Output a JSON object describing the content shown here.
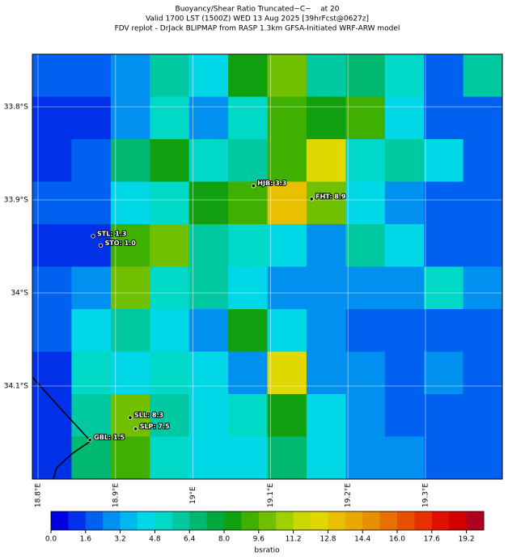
{
  "chart_data": {
    "type": "heatmap",
    "title_lines": [
      "Buoyancy/Shear Ratio Truncated~C~    at 20",
      "Valid 1700 LST (1500Z) WED 13 Aug 2025 [39hrFcst@0627z]",
      "FDV replot - DrJack BLIPMAP from RASP 1.3km GFSA-Initiated WRF-ARW model"
    ],
    "xlim": [
      18.7927,
      19.3992
    ],
    "ylim": [
      -34.2,
      -33.7435
    ],
    "xticks": [
      {
        "value": 18.8,
        "label": "18.8°E"
      },
      {
        "value": 18.9,
        "label": "18.9°E"
      },
      {
        "value": 19.0,
        "label": "19°E"
      },
      {
        "value": 19.1,
        "label": "19.1°E"
      },
      {
        "value": 19.2,
        "label": "19.2°E"
      },
      {
        "value": 19.3,
        "label": "19.3°E"
      }
    ],
    "yticks": [
      {
        "value": -33.8,
        "label": "33.8°S"
      },
      {
        "value": -33.9,
        "label": "33.9°S"
      },
      {
        "value": -34.0,
        "label": "34°S"
      },
      {
        "value": -34.1,
        "label": "34.1°S"
      }
    ],
    "grid": true,
    "values": [
      [
        2,
        2,
        3,
        6,
        4,
        8,
        10,
        6,
        7,
        5,
        2,
        6
      ],
      [
        1,
        1,
        3,
        5,
        3,
        5,
        9,
        8,
        9,
        4,
        2,
        2
      ],
      [
        1,
        2,
        7,
        8,
        5,
        6,
        9,
        12,
        5,
        6,
        4,
        2
      ],
      [
        2,
        2,
        4,
        5,
        8,
        9,
        13,
        10,
        4,
        3,
        2,
        2
      ],
      [
        1,
        1,
        9,
        10,
        6,
        5,
        4,
        3,
        6,
        4,
        2,
        2
      ],
      [
        2,
        3,
        10,
        5,
        6,
        4,
        3,
        3,
        3,
        3,
        5,
        3
      ],
      [
        2,
        4,
        6,
        4,
        3,
        8,
        4,
        3,
        2,
        2,
        2,
        2
      ],
      [
        1,
        5,
        4,
        5,
        4,
        3,
        12,
        3,
        3,
        2,
        3,
        2
      ],
      [
        1,
        6,
        10,
        6,
        4,
        5,
        8,
        4,
        3,
        2,
        2,
        2
      ],
      [
        1,
        7,
        9,
        5,
        4,
        4,
        7,
        4,
        3,
        3,
        2,
        2
      ]
    ],
    "colors": [
      "#0000e0",
      "#0030e8",
      "#0060f0",
      "#0090f0",
      "#00b8f0",
      "#00d8e8",
      "#00d8c8",
      "#00c8a0",
      "#00b870",
      "#00a840",
      "#10a010",
      "#40b000",
      "#70c000",
      "#a0d000",
      "#c8d800",
      "#e0d800",
      "#e8c000",
      "#e8a800",
      "#e89000",
      "#e87000",
      "#e85000",
      "#e83000",
      "#e01000",
      "#d00000",
      "#b00020"
    ],
    "colorbar": {
      "label": "bsratio",
      "lim": [
        0,
        20
      ],
      "ticks": [
        {
          "value": 0,
          "label": "0.0"
        },
        1.6,
        3.2,
        4.8,
        6.4,
        {
          "value": 8,
          "label": "8.0"
        },
        9.6,
        11.2,
        12.8,
        14.4,
        {
          "value": 16,
          "label": "16.0"
        },
        17.6,
        19.2
      ]
    },
    "stations": [
      {
        "label": "STL: 1.3",
        "value": 1.3,
        "lon": 18.871,
        "lat": -33.939
      },
      {
        "label": "STO: 1.0",
        "value": 1.0,
        "lon": 18.881,
        "lat": -33.949
      },
      {
        "label": "HJB: 3.3",
        "value": 3.3,
        "lon": 19.078,
        "lat": -33.885
      },
      {
        "label": "FHT: 8.9",
        "value": 8.9,
        "lon": 19.153,
        "lat": -33.899
      },
      {
        "label": "SLL: 8.3",
        "value": 8.3,
        "lon": 18.919,
        "lat": -34.134
      },
      {
        "label": "SLP: 7.5",
        "value": 7.5,
        "lon": 18.926,
        "lat": -34.146
      },
      {
        "label": "GBL: 1.5",
        "value": 1.5,
        "lon": 18.867,
        "lat": -34.158
      }
    ]
  }
}
